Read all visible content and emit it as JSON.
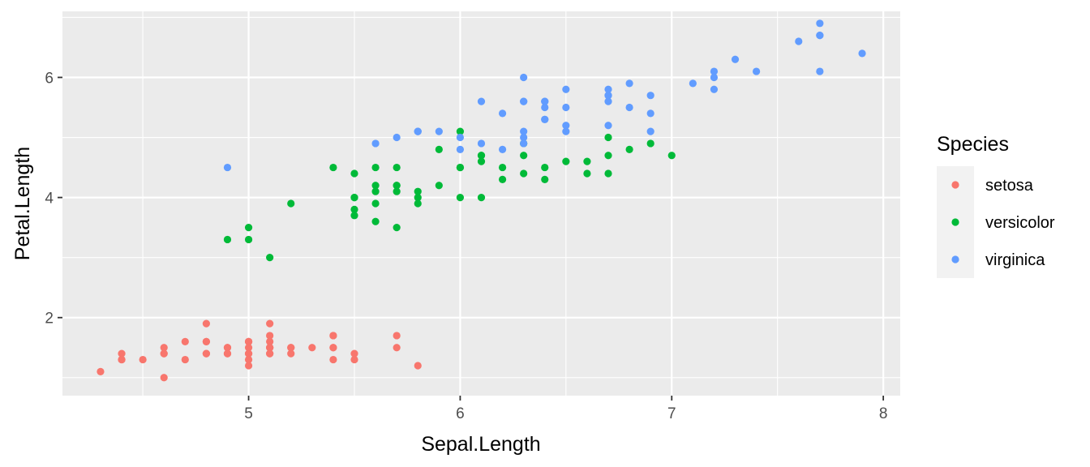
{
  "chart_data": {
    "type": "scatter",
    "xlabel": "Sepal.Length",
    "ylabel": "Petal.Length",
    "xlim": [
      4.12,
      8.08
    ],
    "ylim": [
      0.7,
      7.1
    ],
    "x_ticks": [
      5,
      6,
      7,
      8
    ],
    "y_ticks": [
      2,
      4,
      6
    ],
    "x_tick_labels": [
      "5",
      "6",
      "7",
      "8"
    ],
    "y_tick_labels": [
      "2",
      "4",
      "6"
    ],
    "grid": true,
    "legend_position": "right",
    "legend": {
      "title": "Species"
    },
    "series": [
      {
        "name": "setosa",
        "color": "#F8766D",
        "points": [
          [
            5.1,
            1.4
          ],
          [
            4.9,
            1.4
          ],
          [
            4.7,
            1.3
          ],
          [
            4.6,
            1.5
          ],
          [
            5.0,
            1.4
          ],
          [
            5.4,
            1.7
          ],
          [
            4.6,
            1.4
          ],
          [
            5.0,
            1.5
          ],
          [
            4.4,
            1.4
          ],
          [
            4.9,
            1.5
          ],
          [
            5.4,
            1.5
          ],
          [
            4.8,
            1.6
          ],
          [
            4.8,
            1.4
          ],
          [
            4.3,
            1.1
          ],
          [
            5.8,
            1.2
          ],
          [
            5.7,
            1.5
          ],
          [
            5.4,
            1.3
          ],
          [
            5.1,
            1.4
          ],
          [
            5.7,
            1.7
          ],
          [
            5.1,
            1.5
          ],
          [
            5.4,
            1.7
          ],
          [
            5.1,
            1.5
          ],
          [
            4.6,
            1.0
          ],
          [
            5.1,
            1.7
          ],
          [
            4.8,
            1.9
          ],
          [
            5.0,
            1.6
          ],
          [
            5.0,
            1.6
          ],
          [
            5.2,
            1.5
          ],
          [
            5.2,
            1.4
          ],
          [
            4.7,
            1.6
          ],
          [
            4.8,
            1.6
          ],
          [
            5.4,
            1.5
          ],
          [
            5.2,
            1.5
          ],
          [
            5.5,
            1.4
          ],
          [
            4.9,
            1.5
          ],
          [
            5.0,
            1.2
          ],
          [
            5.5,
            1.3
          ],
          [
            4.9,
            1.4
          ],
          [
            4.4,
            1.3
          ],
          [
            5.1,
            1.5
          ],
          [
            5.0,
            1.3
          ],
          [
            4.5,
            1.3
          ],
          [
            4.4,
            1.3
          ],
          [
            5.0,
            1.6
          ],
          [
            5.1,
            1.9
          ],
          [
            4.8,
            1.4
          ],
          [
            5.1,
            1.6
          ],
          [
            4.6,
            1.4
          ],
          [
            5.3,
            1.5
          ],
          [
            5.0,
            1.4
          ]
        ]
      },
      {
        "name": "versicolor",
        "color": "#00BA38",
        "points": [
          [
            7.0,
            4.7
          ],
          [
            6.4,
            4.5
          ],
          [
            6.9,
            4.9
          ],
          [
            5.5,
            4.0
          ],
          [
            6.5,
            4.6
          ],
          [
            5.7,
            4.5
          ],
          [
            6.3,
            4.7
          ],
          [
            4.9,
            3.3
          ],
          [
            6.6,
            4.6
          ],
          [
            5.2,
            3.9
          ],
          [
            5.0,
            3.5
          ],
          [
            5.9,
            4.2
          ],
          [
            6.0,
            4.0
          ],
          [
            6.1,
            4.7
          ],
          [
            5.6,
            3.6
          ],
          [
            6.7,
            4.4
          ],
          [
            5.6,
            4.5
          ],
          [
            5.8,
            4.1
          ],
          [
            6.2,
            4.5
          ],
          [
            5.6,
            3.9
          ],
          [
            5.9,
            4.8
          ],
          [
            6.1,
            4.0
          ],
          [
            6.3,
            4.9
          ],
          [
            6.1,
            4.7
          ],
          [
            6.4,
            4.3
          ],
          [
            6.6,
            4.4
          ],
          [
            6.8,
            4.8
          ],
          [
            6.7,
            5.0
          ],
          [
            6.0,
            4.5
          ],
          [
            5.7,
            3.5
          ],
          [
            5.5,
            3.8
          ],
          [
            5.5,
            3.7
          ],
          [
            5.8,
            3.9
          ],
          [
            6.0,
            5.1
          ],
          [
            5.4,
            4.5
          ],
          [
            6.0,
            4.5
          ],
          [
            6.7,
            4.7
          ],
          [
            6.3,
            4.4
          ],
          [
            5.6,
            4.1
          ],
          [
            5.5,
            4.0
          ],
          [
            5.5,
            4.4
          ],
          [
            6.1,
            4.6
          ],
          [
            5.8,
            4.0
          ],
          [
            5.0,
            3.3
          ],
          [
            5.6,
            4.2
          ],
          [
            5.7,
            4.2
          ],
          [
            5.7,
            4.2
          ],
          [
            6.2,
            4.3
          ],
          [
            5.1,
            3.0
          ],
          [
            5.7,
            4.1
          ]
        ]
      },
      {
        "name": "virginica",
        "color": "#619CFF",
        "points": [
          [
            6.3,
            6.0
          ],
          [
            5.8,
            5.1
          ],
          [
            7.1,
            5.9
          ],
          [
            6.3,
            5.6
          ],
          [
            6.5,
            5.8
          ],
          [
            7.6,
            6.6
          ],
          [
            4.9,
            4.5
          ],
          [
            7.3,
            6.3
          ],
          [
            6.7,
            5.8
          ],
          [
            7.2,
            6.1
          ],
          [
            6.5,
            5.1
          ],
          [
            6.4,
            5.3
          ],
          [
            6.8,
            5.5
          ],
          [
            5.7,
            5.0
          ],
          [
            5.8,
            5.1
          ],
          [
            6.4,
            5.3
          ],
          [
            6.5,
            5.5
          ],
          [
            7.7,
            6.7
          ],
          [
            7.7,
            6.9
          ],
          [
            6.0,
            5.0
          ],
          [
            6.9,
            5.7
          ],
          [
            5.6,
            4.9
          ],
          [
            7.7,
            6.7
          ],
          [
            6.3,
            4.9
          ],
          [
            6.7,
            5.7
          ],
          [
            7.2,
            6.0
          ],
          [
            6.2,
            4.8
          ],
          [
            6.1,
            4.9
          ],
          [
            6.4,
            5.6
          ],
          [
            7.2,
            5.8
          ],
          [
            7.4,
            6.1
          ],
          [
            7.9,
            6.4
          ],
          [
            6.4,
            5.6
          ],
          [
            6.3,
            5.1
          ],
          [
            6.1,
            5.6
          ],
          [
            7.7,
            6.1
          ],
          [
            6.3,
            5.6
          ],
          [
            6.4,
            5.5
          ],
          [
            6.0,
            4.8
          ],
          [
            6.9,
            5.4
          ],
          [
            6.7,
            5.6
          ],
          [
            6.9,
            5.1
          ],
          [
            5.8,
            5.1
          ],
          [
            6.8,
            5.9
          ],
          [
            6.7,
            5.7
          ],
          [
            6.7,
            5.2
          ],
          [
            6.3,
            5.0
          ],
          [
            6.5,
            5.2
          ],
          [
            6.2,
            5.4
          ],
          [
            5.9,
            5.1
          ]
        ]
      }
    ]
  }
}
